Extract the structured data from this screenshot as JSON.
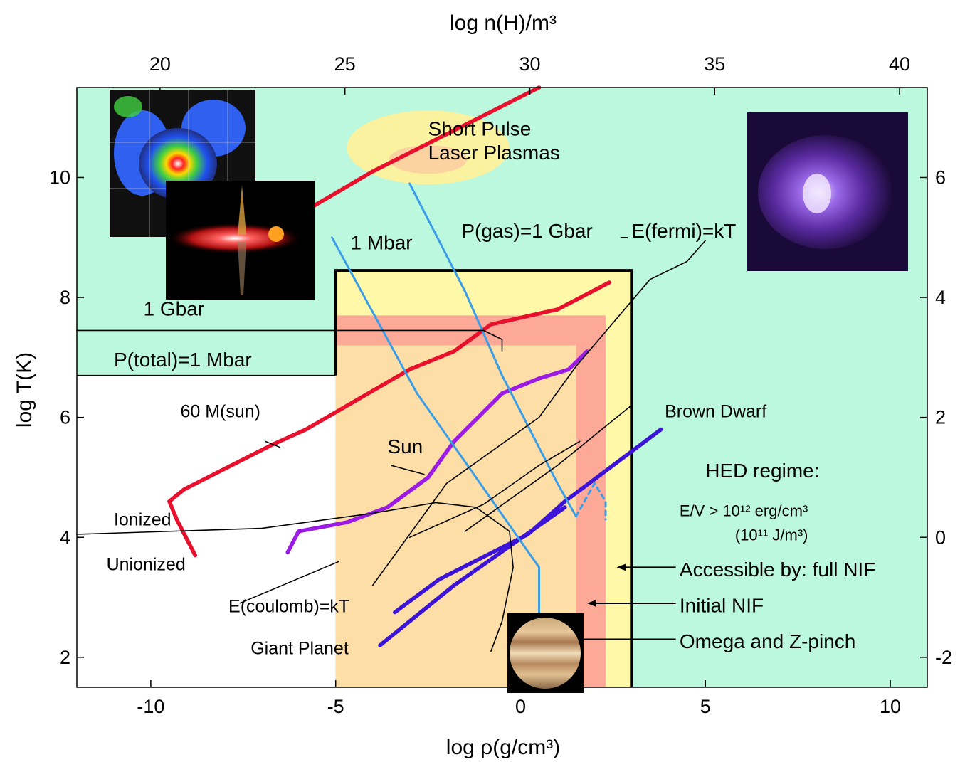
{
  "chart_data": {
    "type": "line",
    "xlabel": "log ρ(g/cm³)",
    "x_top_label": "log n(H)/m³",
    "ylabel": "log T(K)",
    "xlim": [
      -12,
      11
    ],
    "ylim": [
      1.5,
      11.5
    ],
    "x_ticks": [
      -10,
      -5,
      0,
      5,
      10
    ],
    "y_ticks": [
      2,
      4,
      6,
      8,
      10
    ],
    "top_ticks": [
      {
        "x": -9.75,
        "label": "20"
      },
      {
        "x": -4.75,
        "label": "25"
      },
      {
        "x": 0.25,
        "label": "30"
      },
      {
        "x": 5.25,
        "label": "35"
      },
      {
        "x": 10.25,
        "label": "40"
      }
    ],
    "right_ticks": [
      {
        "y": 10,
        "label": "6"
      },
      {
        "y": 8,
        "label": "4"
      },
      {
        "y": 6,
        "label": "2"
      },
      {
        "y": 4,
        "label": "0"
      },
      {
        "y": 2,
        "label": "-2"
      }
    ],
    "colors": {
      "background": "#bbf8dd",
      "unionized_region": "#ffffff",
      "omega_region": "#fff8a8",
      "initial_nif_region": "#fda997",
      "full_nif_region": "#fddea6",
      "stellar": "#e8102c",
      "sun": "#9b1ae4",
      "planet": "#3c14d8",
      "pressure": "#3a9de8",
      "thin": "#000000",
      "ellipse_fill": "#fbf2a0",
      "ellipse_inner": "#fbd2a0"
    },
    "regions": [
      {
        "name": "Omega and Z-pinch",
        "x": [
          -5,
          3
        ],
        "y": [
          1.5,
          8.45
        ]
      },
      {
        "name": "Initial NIF",
        "x": [
          -5,
          2.3
        ],
        "y": [
          1.5,
          7.7
        ]
      },
      {
        "name": "Accessible by: full NIF",
        "x": [
          -5,
          1.5
        ],
        "y": [
          1.5,
          7.2
        ]
      }
    ],
    "unionized_region": [
      [
        -12,
        6.7
      ],
      [
        -5,
        6.7
      ],
      [
        -4.6,
        6.5
      ],
      [
        -3.2,
        5.3
      ],
      [
        -2.5,
        4.4
      ],
      [
        -0.8,
        3.5
      ],
      [
        0.4,
        3.5
      ],
      [
        0.4,
        1.5
      ],
      [
        -12,
        1.5
      ]
    ],
    "series": [
      {
        "name": "60 M(sun)",
        "style": "stellar",
        "points": [
          [
            -8.8,
            3.7
          ],
          [
            -9.3,
            4.3
          ],
          [
            -9.5,
            4.6
          ],
          [
            -9.1,
            4.8
          ],
          [
            -6.7,
            5.55
          ],
          [
            -5.8,
            5.8
          ],
          [
            -3,
            6.8
          ],
          [
            -1.8,
            7.1
          ],
          [
            -0.8,
            7.55
          ],
          [
            1,
            7.8
          ],
          [
            2.4,
            8.25
          ]
        ]
      },
      {
        "name": "",
        "style": "stellar",
        "points": [
          [
            -5.8,
            9.45
          ],
          [
            -4,
            10.1
          ],
          [
            0.5,
            11.5
          ]
        ]
      },
      {
        "name": "Sun",
        "style": "sun",
        "points": [
          [
            -6.3,
            3.75
          ],
          [
            -6,
            4.1
          ],
          [
            -4.7,
            4.25
          ],
          [
            -3.6,
            4.5
          ],
          [
            -2.5,
            5
          ],
          [
            -1.8,
            5.6
          ],
          [
            -0.5,
            6.4
          ],
          [
            0.5,
            6.65
          ],
          [
            1.3,
            6.8
          ],
          [
            1.8,
            7.1
          ]
        ]
      },
      {
        "name": "Brown Dwarf",
        "style": "planet",
        "points": [
          [
            -3.4,
            2.75
          ],
          [
            -2.2,
            3.3
          ],
          [
            0.2,
            4.05
          ],
          [
            1.2,
            4.6
          ],
          [
            3.8,
            5.8
          ]
        ]
      },
      {
        "name": "Giant Planet",
        "style": "planet",
        "points": [
          [
            -3.8,
            2.2
          ],
          [
            -1.8,
            3.2
          ],
          [
            1.2,
            4.5
          ]
        ]
      },
      {
        "name": "1 Mbar",
        "style": "pressure",
        "points": [
          [
            -5.1,
            9
          ],
          [
            -2.8,
            6.4
          ],
          [
            0.5,
            3.5
          ],
          [
            0.5,
            2.6
          ]
        ]
      },
      {
        "name": "P(gas)=1 Gbar",
        "style": "pressure",
        "points": [
          [
            -3,
            9.9
          ],
          [
            -1.5,
            8.1
          ],
          [
            -0.5,
            6.7
          ],
          [
            1,
            4.9
          ],
          [
            1.5,
            4.35
          ]
        ]
      },
      {
        "name": "",
        "style": "pressure_dashed",
        "points": [
          [
            1.5,
            4.35
          ],
          [
            2,
            4.9
          ],
          [
            2.3,
            4.6
          ],
          [
            2.3,
            4.3
          ]
        ]
      },
      {
        "name": "E(fermi)=kT",
        "style": "thin",
        "points": [
          [
            -4,
            3.2
          ],
          [
            -2,
            4.9
          ],
          [
            0.5,
            6
          ],
          [
            1.5,
            6.85
          ],
          [
            3.5,
            8.3
          ],
          [
            4.5,
            8.6
          ],
          [
            5,
            8.95
          ]
        ]
      },
      {
        "name": "",
        "style": "thin",
        "points": [
          [
            -1.5,
            4.1
          ],
          [
            1,
            5.2
          ],
          [
            3,
            6.2
          ]
        ]
      },
      {
        "name": "E(coulomb)=kT",
        "style": "thin",
        "points": [
          [
            -3,
            4
          ],
          [
            -1,
            4.55
          ],
          [
            0.5,
            5.2
          ],
          [
            1.6,
            5.6
          ]
        ]
      },
      {
        "name": "Ionized / Unionized",
        "style": "thin",
        "points": [
          [
            -12,
            4.05
          ],
          [
            -7,
            4.15
          ],
          [
            -4,
            4.4
          ],
          [
            -2.3,
            4.58
          ],
          [
            -1.2,
            4.5
          ],
          [
            -0.3,
            4.1
          ],
          [
            -0.2,
            3.5
          ],
          [
            -0.5,
            2.6
          ],
          [
            -0.8,
            2.1
          ]
        ]
      },
      {
        "name": "1 Gbar",
        "style": "thin",
        "points": [
          [
            -12,
            7.45
          ],
          [
            -1,
            7.45
          ],
          [
            -0.5,
            7.3
          ],
          [
            -0.5,
            7.1
          ]
        ]
      }
    ],
    "annotations": [
      {
        "text": "Short Pulse",
        "x": -2.5,
        "y": 10.7,
        "size": "big"
      },
      {
        "text": "Laser Plasmas",
        "x": -2.5,
        "y": 10.3,
        "size": "big"
      },
      {
        "text": "1 Mbar",
        "x": -4.6,
        "y": 8.8,
        "size": "big"
      },
      {
        "text": "P(gas)=1 Gbar",
        "x": -1.6,
        "y": 9.0,
        "size": "big"
      },
      {
        "text": "E(fermi)=kT",
        "x": 3.0,
        "y": 9.0,
        "size": "big"
      },
      {
        "text": "1 Gbar",
        "x": -10.2,
        "y": 7.7,
        "size": "big"
      },
      {
        "text": "P(total)=1 Mbar",
        "x": -11.0,
        "y": 6.85,
        "size": "big"
      },
      {
        "text": "60 M(sun)",
        "x": -9.2,
        "y": 6.0,
        "size": "normal"
      },
      {
        "text": "Sun",
        "x": -3.6,
        "y": 5.4,
        "size": "big"
      },
      {
        "text": "Brown Dwarf",
        "x": 3.9,
        "y": 6.0,
        "size": "normal"
      },
      {
        "text": "HED regime:",
        "x": 5,
        "y": 5.0,
        "size": "big"
      },
      {
        "text": "E/V > 10¹² erg/cm³",
        "x": 4.3,
        "y": 4.35,
        "size": "small"
      },
      {
        "text": "(10¹¹ J/m³)",
        "x": 5.8,
        "y": 3.95,
        "size": "small"
      },
      {
        "text": "Ionized",
        "x": -11.0,
        "y": 4.2,
        "size": "normal"
      },
      {
        "text": "Unionized",
        "x": -11.2,
        "y": 3.45,
        "size": "normal"
      },
      {
        "text": "E(coulomb)=kT",
        "x": -7.9,
        "y": 2.75,
        "size": "normal"
      },
      {
        "text": "Giant Planet",
        "x": -7.3,
        "y": 2.05,
        "size": "normal"
      },
      {
        "text": "Accessible by: full NIF",
        "x": 4.3,
        "y": 3.35,
        "size": "big"
      },
      {
        "text": "Initial NIF",
        "x": 4.3,
        "y": 2.75,
        "size": "big"
      },
      {
        "text": "Omega and Z-pinch",
        "x": 4.3,
        "y": 2.15,
        "size": "big"
      }
    ],
    "pointer_lines": [
      {
        "from": [
          -7.6,
          2.9
        ],
        "to": [
          -4.9,
          3.6
        ]
      },
      {
        "from": [
          -6.9,
          5.6
        ],
        "to": [
          -6.5,
          5.5
        ]
      },
      {
        "from": [
          -3.5,
          5.2
        ],
        "to": [
          -2.6,
          5.05
        ]
      },
      {
        "from": [
          2.7,
          9.0
        ],
        "to": [
          2.9,
          9.0
        ]
      }
    ],
    "arrows": [
      {
        "from": [
          4.2,
          3.5
        ],
        "to": [
          2.6,
          3.5
        ]
      },
      {
        "from": [
          4.2,
          2.9
        ],
        "to": [
          1.8,
          2.9
        ]
      },
      {
        "from": [
          4.2,
          2.3
        ],
        "to": [
          0.5,
          2.3
        ]
      }
    ]
  }
}
